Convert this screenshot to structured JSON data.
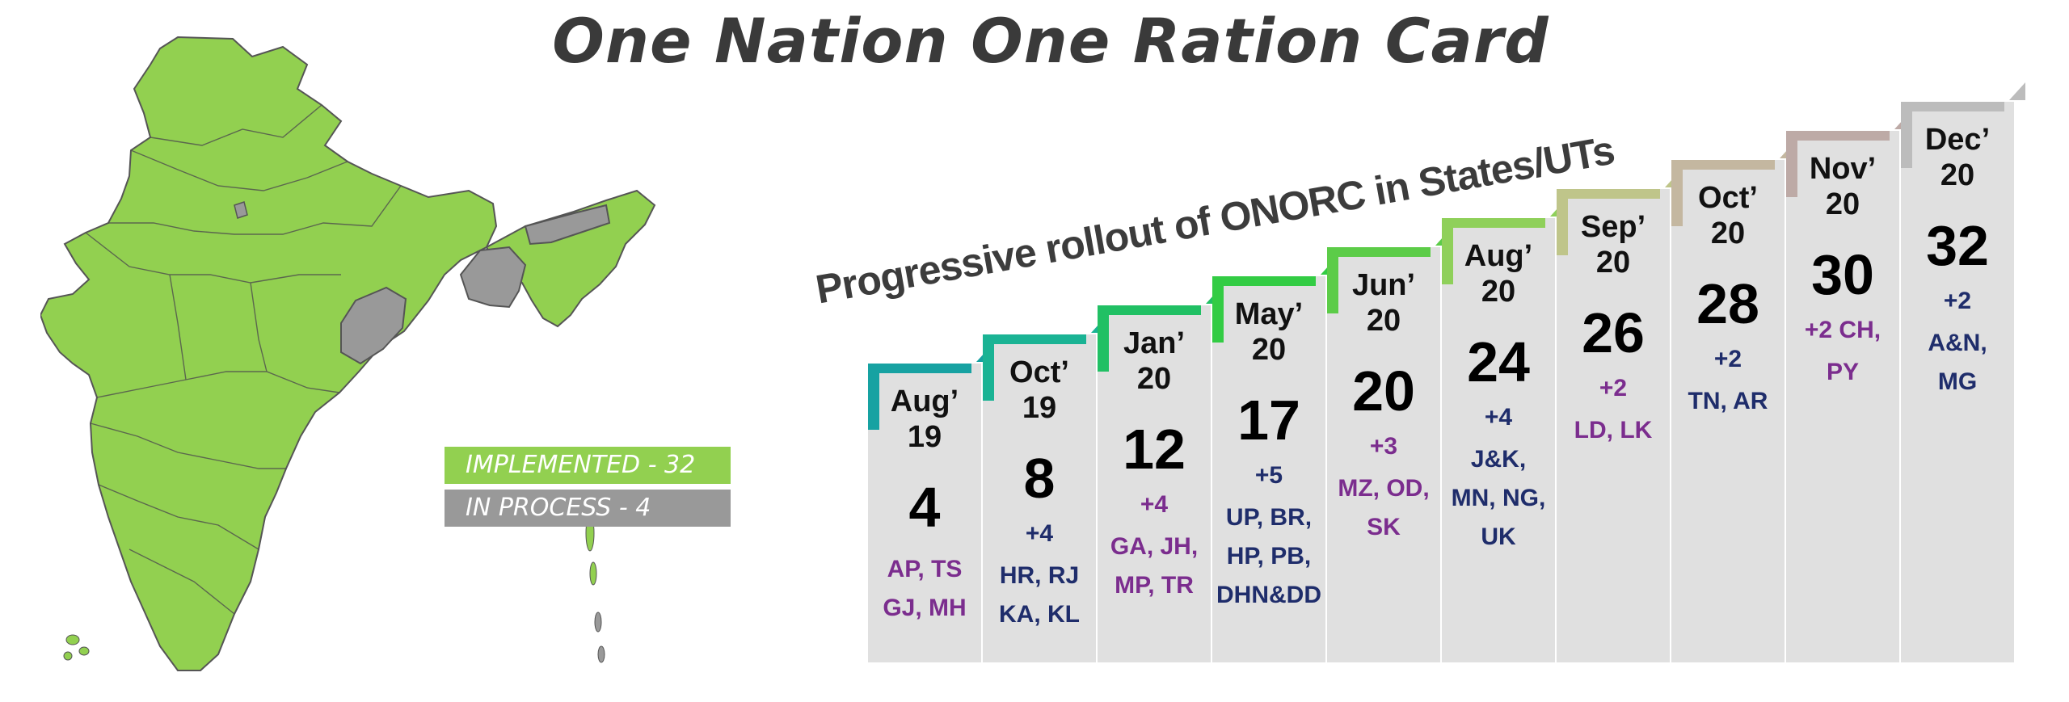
{
  "title": "One Nation One Ration Card",
  "subtitle": "Progressive rollout of ONORC in States/UTs",
  "legend": {
    "implemented": "IMPLEMENTED - 32",
    "in_process": "IN PROCESS - 4",
    "implemented_color": "#92d050",
    "in_process_color": "#999999"
  },
  "timeline": [
    {
      "month": "Aug’",
      "year": "19",
      "count": "4",
      "added": "",
      "states": [
        "AP, TS",
        "GJ, MH"
      ],
      "color": "#17a2a2",
      "text_color": "purple"
    },
    {
      "month": "Oct’",
      "year": "19",
      "count": "8",
      "added": "+4",
      "states": [
        "HR, RJ",
        "KA, KL"
      ],
      "color": "#1ab394",
      "text_color": "navy"
    },
    {
      "month": "Jan’",
      "year": "20",
      "count": "12",
      "added": "+4",
      "states": [
        "GA, JH,",
        "MP, TR"
      ],
      "color": "#21c064",
      "text_color": "purple"
    },
    {
      "month": "May’",
      "year": "20",
      "count": "17",
      "added": "+5",
      "states": [
        "UP, BR,",
        "HP, PB,",
        "DHN&DD"
      ],
      "color": "#33cc44",
      "text_color": "navy"
    },
    {
      "month": "Jun’",
      "year": "20",
      "count": "20",
      "added": "+3",
      "states": [
        "MZ, OD,",
        "SK"
      ],
      "color": "#5ccc48",
      "text_color": "purple"
    },
    {
      "month": "Aug’",
      "year": "20",
      "count": "24",
      "added": "+4",
      "states": [
        "J&K,",
        "MN, NG,",
        "UK"
      ],
      "color": "#8fd05a",
      "text_color": "navy"
    },
    {
      "month": "Sep’",
      "year": "20",
      "count": "26",
      "added": "+2",
      "states": [
        "LD, LK"
      ],
      "color": "#bfc58a",
      "text_color": "purple"
    },
    {
      "month": "Oct’",
      "year": "20",
      "count": "28",
      "added": "+2",
      "states": [
        "TN, AR"
      ],
      "color": "#c4b7a0",
      "text_color": "navy"
    },
    {
      "month": "Nov’",
      "year": "20",
      "count": "30",
      "added": "+2 CH,",
      "states": [
        "PY"
      ],
      "color": "#bdaaa6",
      "text_color": "purple"
    },
    {
      "month": "Dec’",
      "year": "20",
      "count": "32",
      "added": "+2",
      "states": [
        "A&N,",
        "MG"
      ],
      "color": "#bcbcbc",
      "text_color": "navy"
    }
  ]
}
